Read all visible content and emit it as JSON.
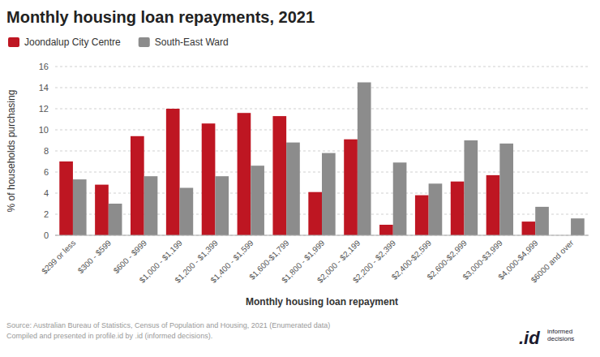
{
  "chart_data": {
    "type": "bar",
    "title": "Monthly housing loan repayments, 2021",
    "xlabel": "Monthly housing loan repayment",
    "ylabel": "% of households purchasing",
    "categories": [
      "$299 or less",
      "$300 - $599",
      "$600 - $999",
      "$1,000 - $1,199",
      "$1,200 - $1,399",
      "$1,400 - $1,599",
      "$1,600-$1,799",
      "$1,800 - $1,999",
      "$2,000 - $2,199",
      "$2,200 - $2,399",
      "$2,400-$2,599",
      "$2,600-$2,999",
      "$3,000-$3,999",
      "$4,000-$4,999",
      "$6000 and over"
    ],
    "series": [
      {
        "name": "Joondalup City Centre",
        "color": "#BE1622",
        "values": [
          7.0,
          4.8,
          9.4,
          12.0,
          10.6,
          11.6,
          11.3,
          4.1,
          9.1,
          1.0,
          3.8,
          5.1,
          5.7,
          1.3,
          0.0
        ]
      },
      {
        "name": "South-East Ward",
        "color": "#8C8C8C",
        "values": [
          5.3,
          3.0,
          5.6,
          4.5,
          5.6,
          6.6,
          8.8,
          7.8,
          14.5,
          6.9,
          4.9,
          9.0,
          8.7,
          2.7,
          1.6
        ]
      }
    ],
    "ylim": [
      0,
      16
    ],
    "yticks": [
      0,
      2,
      4,
      6,
      8,
      10,
      12,
      14,
      16
    ],
    "grid": true,
    "legend": "upper-left",
    "annotations": [
      "Source: Australian Bureau of Statistics, Census of Population and Housing, 2021 (Enumerated data)\nCompiled and presented in profile.id by .id (informed decisions).",
      ".id",
      "informed\ndecisions"
    ]
  }
}
